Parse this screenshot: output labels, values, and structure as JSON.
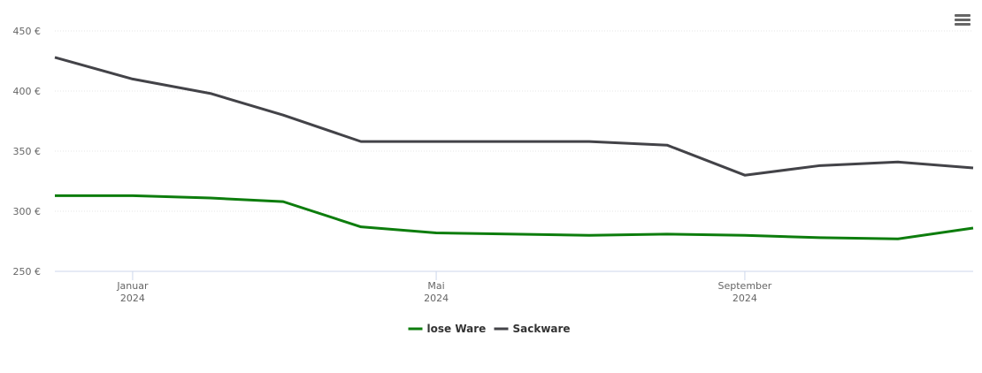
{
  "chart_data": {
    "type": "line",
    "x": [
      "2023-12",
      "2024-01",
      "2024-02",
      "2024-03",
      "2024-04",
      "2024-05",
      "2024-06",
      "2024-07",
      "2024-08",
      "2024-09",
      "2024-10",
      "2024-11",
      "2024-12"
    ],
    "series": [
      {
        "name": "lose Ware",
        "color": "#0d7d0d",
        "values": [
          313,
          313,
          311,
          308,
          287,
          282,
          281,
          280,
          281,
          280,
          278,
          277,
          286
        ]
      },
      {
        "name": "Sackware",
        "color": "#434348",
        "values": [
          428,
          410,
          398,
          380,
          358,
          358,
          358,
          358,
          355,
          330,
          338,
          341,
          336
        ]
      }
    ],
    "xlim": [
      "2023-12",
      "2024-12"
    ],
    "xticks": [
      {
        "value": "2024-01",
        "label": "Januar 2024"
      },
      {
        "value": "2024-05",
        "label": "Mai 2024"
      },
      {
        "value": "2024-09",
        "label": "September 2024"
      }
    ],
    "ylim": [
      250,
      450
    ],
    "yticks": [
      {
        "value": 250,
        "label": "250 €"
      },
      {
        "value": 300,
        "label": "300 €"
      },
      {
        "value": 350,
        "label": "350 €"
      },
      {
        "value": 400,
        "label": "400 €"
      },
      {
        "value": 450,
        "label": "450 €"
      }
    ],
    "grid": true,
    "legend": "bottom"
  }
}
